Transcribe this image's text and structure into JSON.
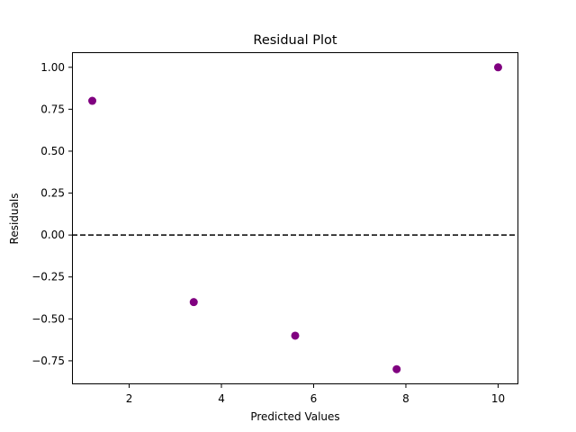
{
  "chart_data": {
    "type": "scatter",
    "title": "Residual Plot",
    "xlabel": "Predicted Values",
    "ylabel": "Residuals",
    "xlim": [
      0.76,
      10.44
    ],
    "ylim": [
      -0.89,
      1.09
    ],
    "xticks": [
      2,
      4,
      6,
      8,
      10
    ],
    "yticks": [
      -0.75,
      -0.5,
      -0.25,
      0.0,
      0.25,
      0.5,
      0.75,
      1.0
    ],
    "xtick_labels": [
      "2",
      "4",
      "6",
      "8",
      "10"
    ],
    "ytick_labels": [
      "−0.75",
      "−0.50",
      "−0.25",
      "0.00",
      "0.25",
      "0.50",
      "0.75",
      "1.00"
    ],
    "series": [
      {
        "x": [
          1.2,
          3.4,
          5.6,
          7.8,
          10.0
        ],
        "y": [
          0.8,
          -0.4,
          -0.6,
          -0.8,
          1.0
        ],
        "color": "#800080"
      }
    ],
    "reference_line": {
      "y": 0,
      "style": "dashed",
      "color": "#000000"
    },
    "grid": false,
    "legend": "none"
  }
}
